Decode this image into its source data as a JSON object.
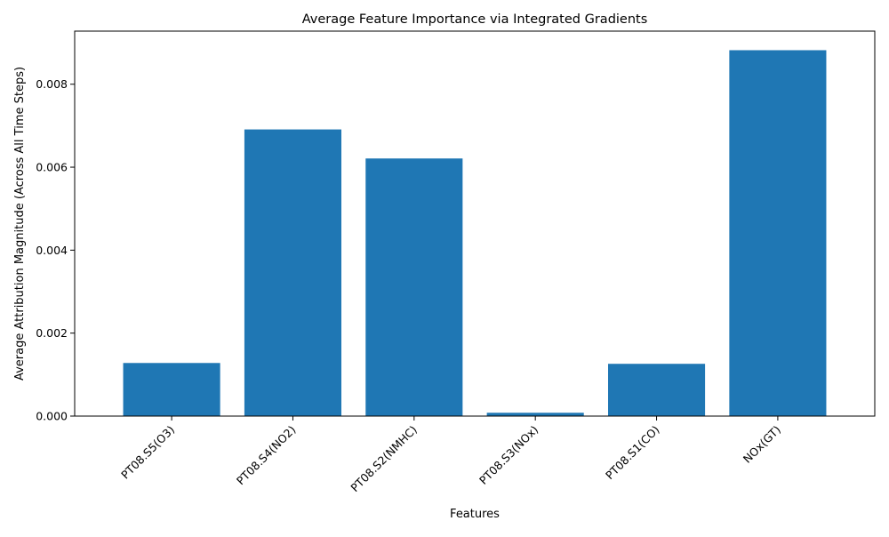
{
  "chart_data": {
    "type": "bar",
    "title": "Average Feature Importance via Integrated Gradients",
    "xlabel": "Features",
    "ylabel": "Average Attribution Magnitude (Across All Time Steps)",
    "categories": [
      "PT08.S5(O3)",
      "PT08.S4(NO2)",
      "PT08.S2(NMHC)",
      "PT08.S3(NOx)",
      "PT08.S1(CO)",
      "NOx(GT)"
    ],
    "values": [
      0.00128,
      0.00691,
      0.00621,
      8e-05,
      0.00126,
      0.00882
    ],
    "ylim": [
      0,
      0.00928
    ],
    "yticks": [
      0,
      0.002,
      0.004,
      0.006,
      0.008
    ],
    "ytick_labels": [
      "0.000",
      "0.002",
      "0.004",
      "0.006",
      "0.008"
    ],
    "bar_color": "#1f77b4",
    "grid": false,
    "legend": false
  }
}
